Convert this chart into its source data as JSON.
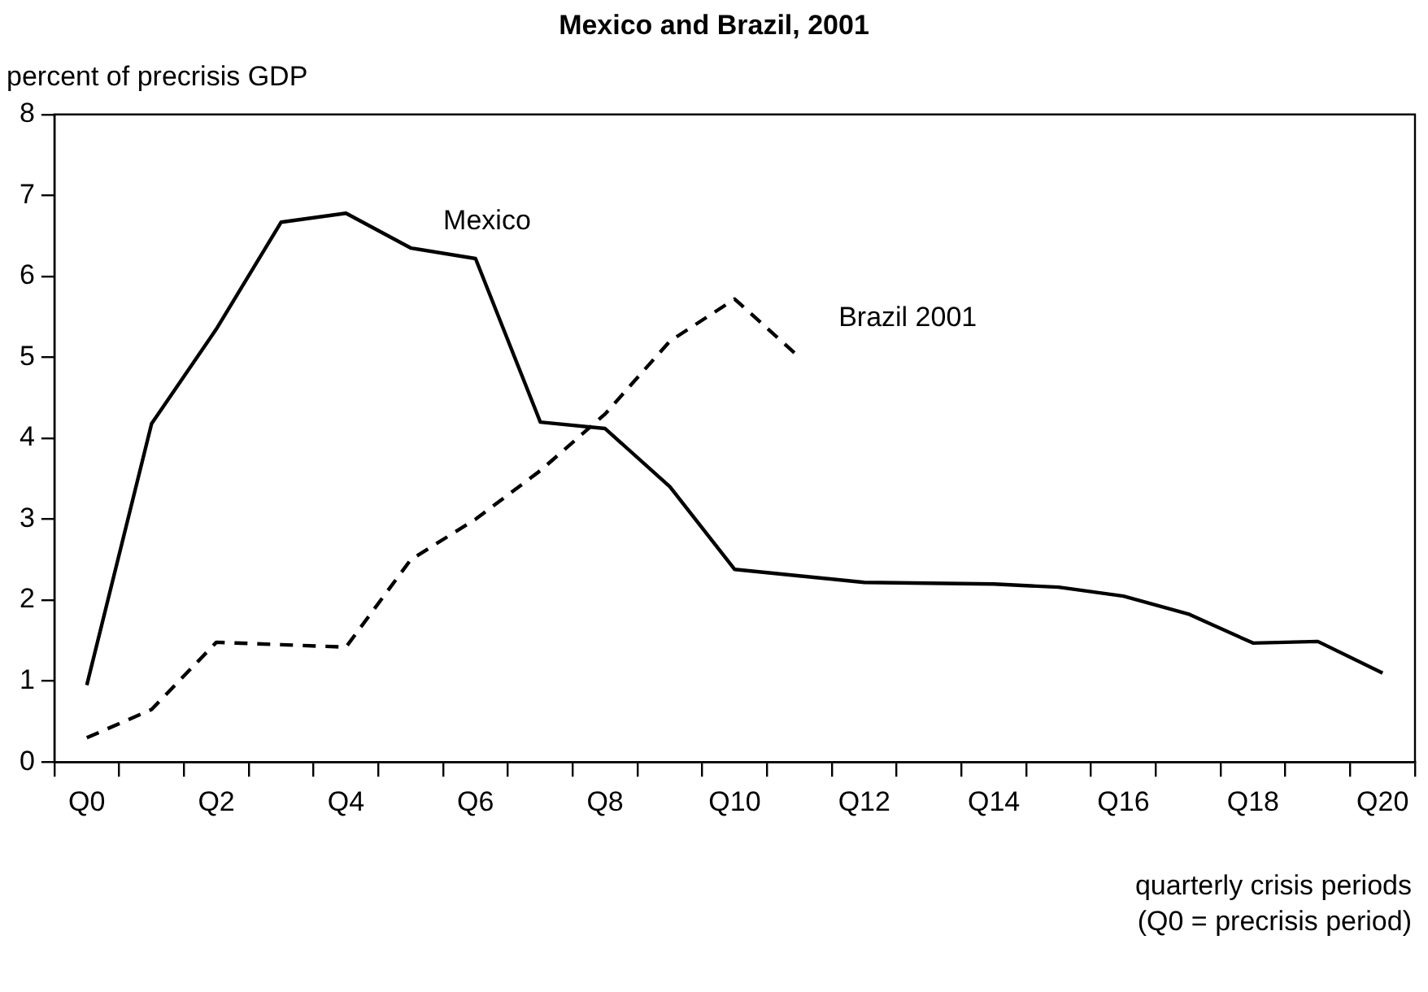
{
  "chart_data": {
    "type": "line",
    "title": "Mexico and Brazil, 2001",
    "ylabel": "percent of precrisis GDP",
    "xlabel": "quarterly crisis periods\n(Q0 = precrisis period)",
    "categories": [
      "Q0",
      null,
      "Q2",
      null,
      "Q4",
      null,
      "Q6",
      null,
      "Q8",
      null,
      "Q10",
      null,
      "Q12",
      null,
      "Q14",
      null,
      "Q16",
      null,
      "Q18",
      null,
      "Q20"
    ],
    "series": [
      {
        "name": "Mexico",
        "color": "#000000",
        "line_style": "solid",
        "values": [
          0.95,
          4.18,
          5.35,
          6.67,
          6.78,
          6.35,
          6.22,
          4.2,
          4.12,
          3.4,
          2.38,
          2.3,
          2.22,
          2.21,
          2.2,
          2.16,
          2.05,
          1.83,
          1.47,
          1.49,
          1.1
        ]
      },
      {
        "name": "Brazil 2001",
        "color": "#000000",
        "line_style": "dashed",
        "values": [
          0.3,
          0.65,
          1.48,
          1.45,
          1.42,
          2.5,
          3.0,
          3.6,
          4.3,
          5.2,
          5.72,
          5.0,
          null,
          null,
          null,
          null,
          null,
          null,
          null,
          null,
          null
        ]
      }
    ],
    "ylim": [
      0,
      8
    ],
    "yticks": [
      0,
      1,
      2,
      3,
      4,
      5,
      6,
      7,
      8
    ],
    "grid": false,
    "legend": false,
    "marker": "none"
  }
}
